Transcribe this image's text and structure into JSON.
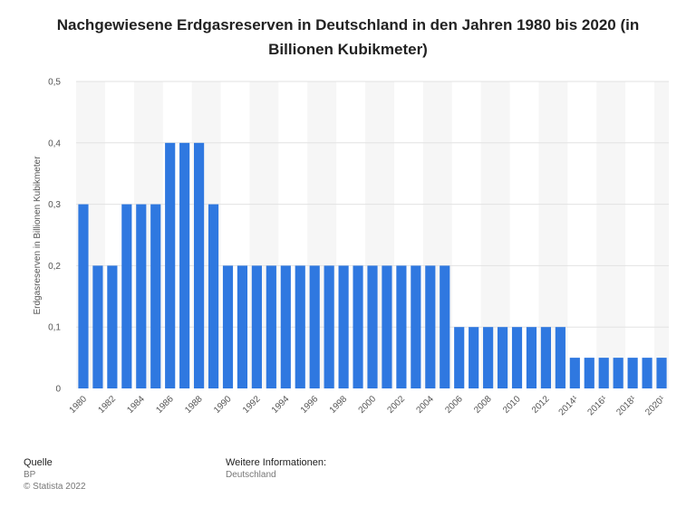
{
  "chart_data": {
    "type": "bar",
    "title": "Nachgewiesene Erdgasreserven in Deutschland in den Jahren 1980 bis 2020 (in Billionen Kubikmeter)",
    "xlabel": "",
    "ylabel": "Erdgasreserven in Billionen Kubikmeter",
    "ylim": [
      0,
      0.5
    ],
    "yticks": [
      "0",
      "0,1",
      "0,2",
      "0,3",
      "0,4",
      "0,5"
    ],
    "yticks_values": [
      0,
      0.1,
      0.2,
      0.3,
      0.4,
      0.5
    ],
    "grid": true,
    "bar_color": "#2f78e0",
    "categories": [
      "1980",
      "1981",
      "1982",
      "1983",
      "1984",
      "1985",
      "1986",
      "1987",
      "1988",
      "1989",
      "1990",
      "1991",
      "1992",
      "1993",
      "1994",
      "1995",
      "1996",
      "1997",
      "1998",
      "1999",
      "2000",
      "2001",
      "2002",
      "2003",
      "2004",
      "2005",
      "2006",
      "2007",
      "2008",
      "2009",
      "2010",
      "2011",
      "2012",
      "2013",
      "2014¹",
      "2015¹",
      "2016¹",
      "2017¹",
      "2018¹",
      "2019¹",
      "2020¹"
    ],
    "values": [
      0.3,
      0.2,
      0.2,
      0.3,
      0.3,
      0.3,
      0.4,
      0.4,
      0.4,
      0.3,
      0.2,
      0.2,
      0.2,
      0.2,
      0.2,
      0.2,
      0.2,
      0.2,
      0.2,
      0.2,
      0.2,
      0.2,
      0.2,
      0.2,
      0.2,
      0.2,
      0.1,
      0.1,
      0.1,
      0.1,
      0.1,
      0.1,
      0.1,
      0.1,
      0.05,
      0.05,
      0.05,
      0.05,
      0.05,
      0.05,
      0.05
    ],
    "xtick_labels": [
      "1980",
      "1982",
      "1984",
      "1986",
      "1988",
      "1990",
      "1992",
      "1994",
      "1996",
      "1998",
      "2000",
      "2002",
      "2004",
      "2006",
      "2008",
      "2010",
      "2012",
      "2014¹",
      "2016¹",
      "2018¹",
      "2020¹"
    ]
  },
  "footer": {
    "source_heading": "Quelle",
    "source_value": "BP",
    "copyright": "© Statista 2022",
    "info_heading": "Weitere Informationen:",
    "info_value": "Deutschland"
  }
}
